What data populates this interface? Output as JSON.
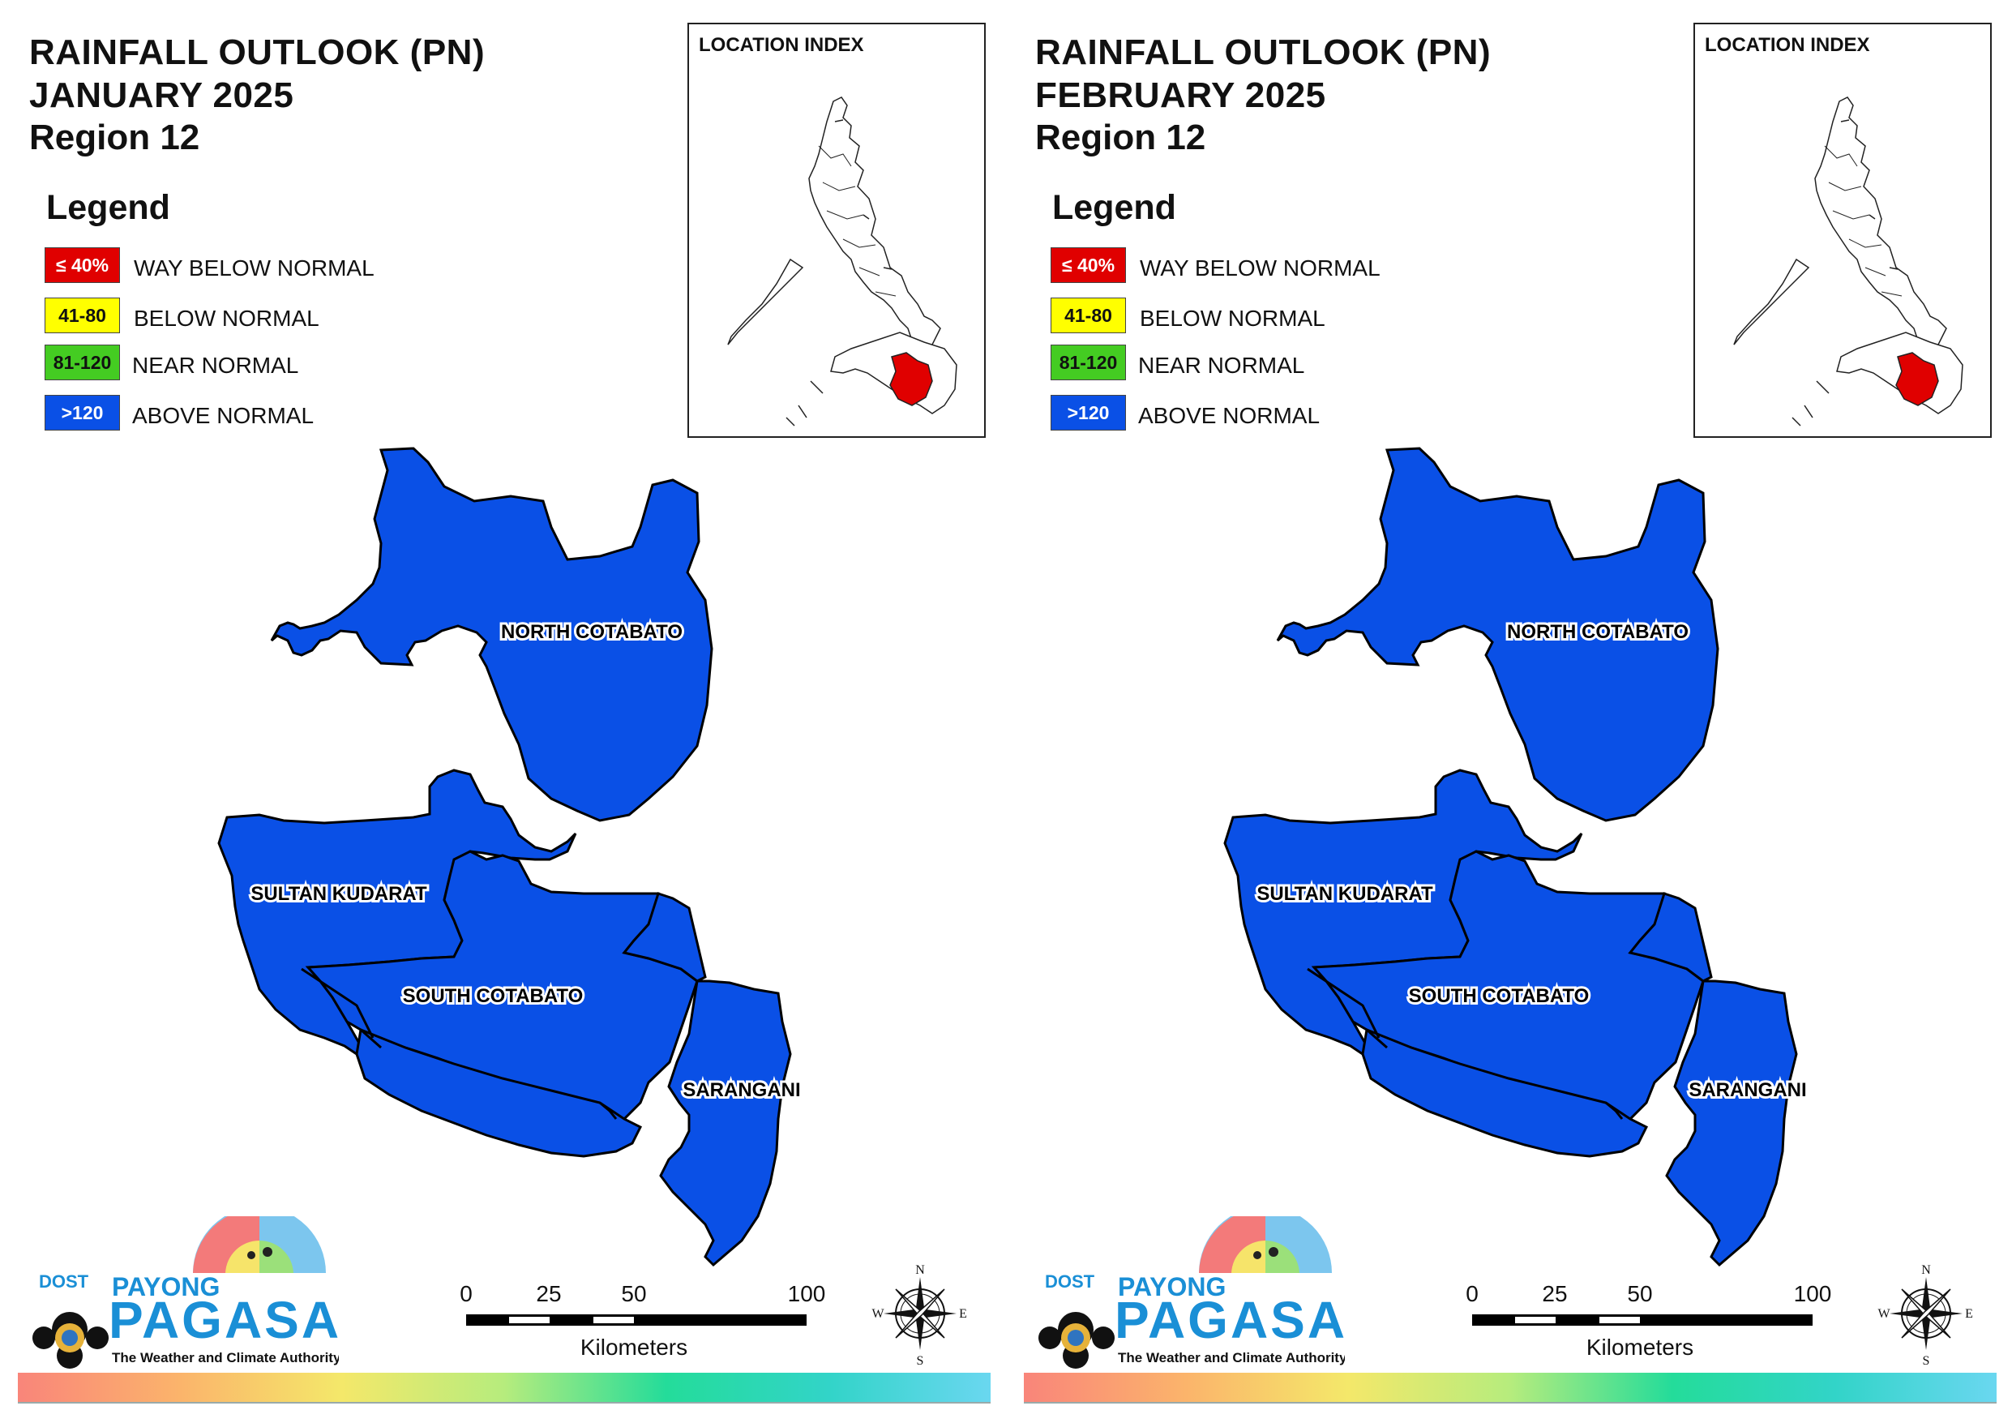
{
  "panels": [
    {
      "title_line1": "RAINFALL OUTLOOK (PN)",
      "title_line2": "JANUARY 2025",
      "title_line3": "Region 12"
    },
    {
      "title_line1": "RAINFALL OUTLOOK (PN)",
      "title_line2": "FEBRUARY 2025",
      "title_line3": "Region 12"
    }
  ],
  "legend": {
    "title": "Legend",
    "items": [
      {
        "swatch": "≤ 40%",
        "label": "WAY BELOW NORMAL",
        "color": "#e00000",
        "text_color": "#ffffff"
      },
      {
        "swatch": "41-80",
        "label": "BELOW NORMAL",
        "color": "#ffff00",
        "text_color": "#111111"
      },
      {
        "swatch": "81-120",
        "label": "NEAR NORMAL",
        "color": "#44cc22",
        "text_color": "#111111"
      },
      {
        "swatch": ">120",
        "label": "ABOVE NORMAL",
        "color": "#0a50e6",
        "text_color": "#ffffff"
      }
    ]
  },
  "inset": {
    "title": "LOCATION INDEX",
    "highlight_color": "#e00000"
  },
  "provinces": {
    "north": "NORTH COTABATO",
    "sultan": "SULTAN KUDARAT",
    "south": "SOUTH COTABATO",
    "sarangani": "SARANGANI",
    "fill_color": "#0a50e6"
  },
  "scale_bar": {
    "ticks": [
      "0",
      "25",
      "50",
      "100"
    ],
    "unit": "Kilometers"
  },
  "compass": {
    "n": "N",
    "s": "S",
    "e": "E",
    "w": "W"
  },
  "logo": {
    "dost": "DOST",
    "payong": "PAYONG",
    "pagasa": "PAGASA",
    "tagline": "The Weather and Climate Authority"
  }
}
